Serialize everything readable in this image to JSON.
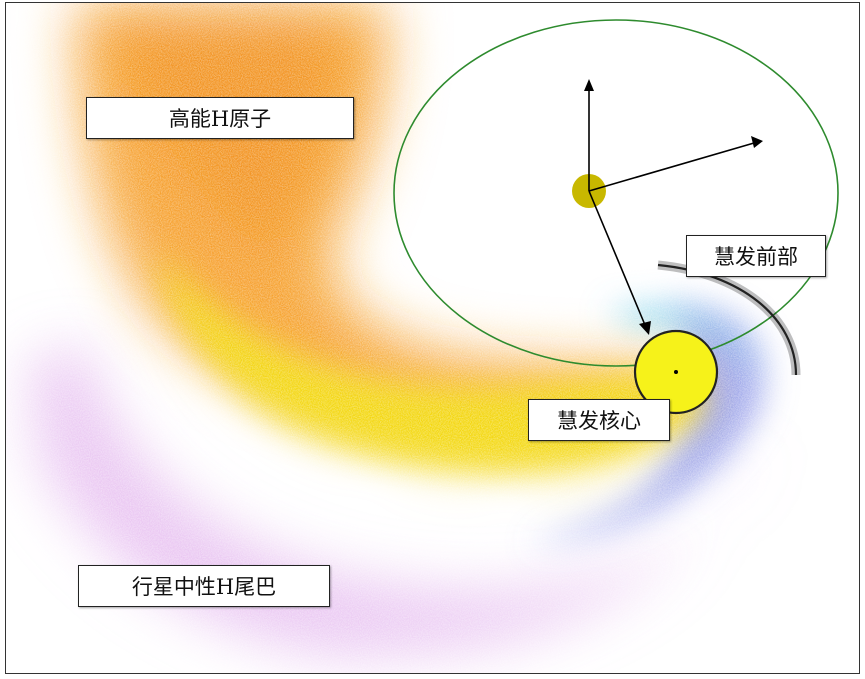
{
  "labels": {
    "energetic_h": "高能H原子",
    "coma_front": "慧发前部",
    "coma_nucleus": "慧发核心",
    "neutral_tail": "行星中性H尾巴"
  },
  "colors": {
    "orbit": "#2e8b2e",
    "planet": "#c8b800",
    "energetic_cloud": "#f59a1a",
    "core_cloud": "#f2d600",
    "front_cloud": "#5fc8e8",
    "outer_cloud": "#7a86e6",
    "tail_cloud": "#d690e6",
    "nucleus": "#f6f21a"
  }
}
